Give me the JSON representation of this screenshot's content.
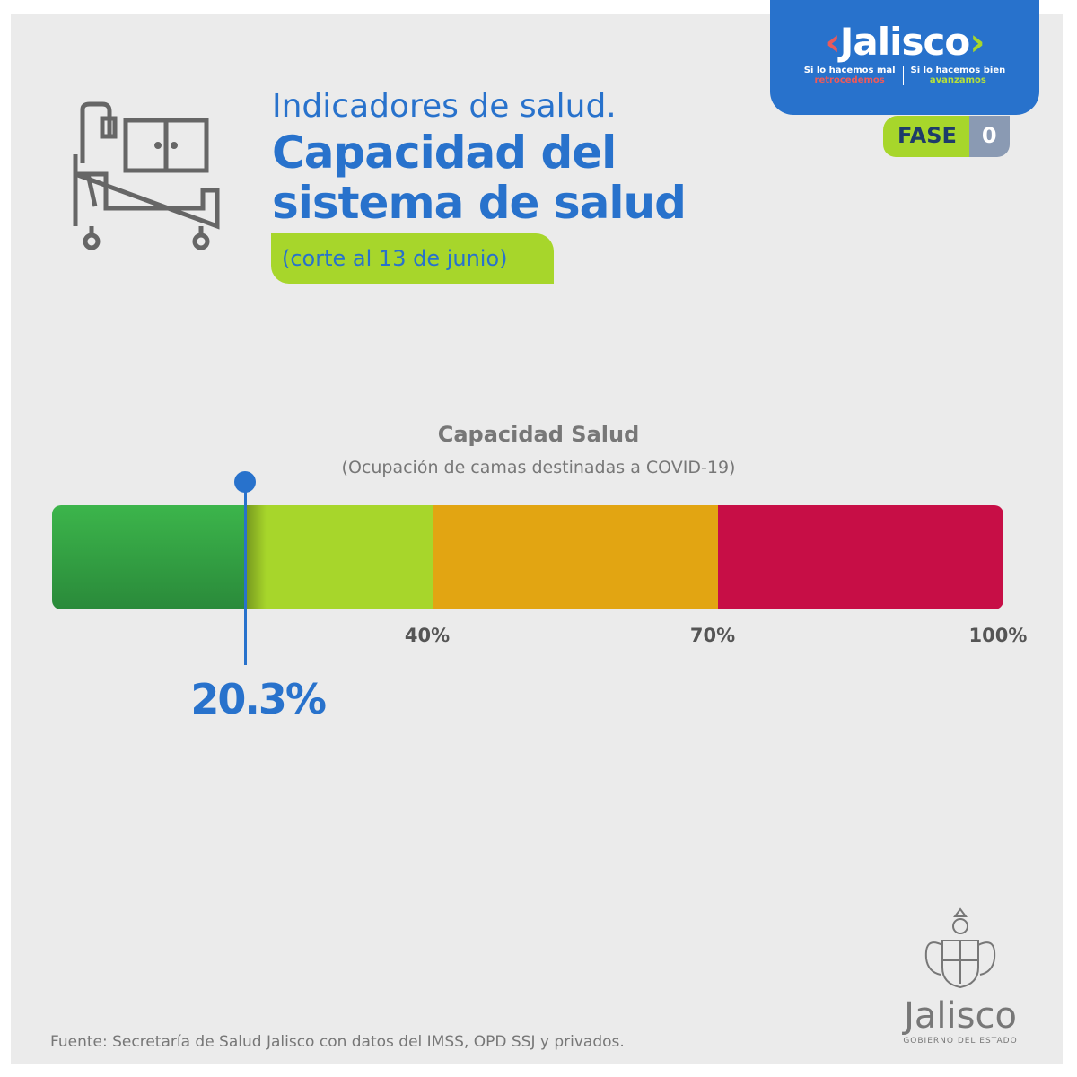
{
  "logo": {
    "name": "Jalisco",
    "tag_left_1": "Si lo hacemos mal",
    "tag_left_2": "retrocedemos",
    "tag_right_1": "Si lo hacemos bien",
    "tag_right_2": "avanzamos"
  },
  "fase": {
    "label": "FASE",
    "value": "0"
  },
  "header": {
    "subtitle": "Indicadores de salud.",
    "title_1": "Capacidad del",
    "title_2": "sistema de salud",
    "date": "(corte al 13 de junio)"
  },
  "chart_data": {
    "type": "bar",
    "title": "Capacidad Salud",
    "subtitle": "(Ocupación de camas destinadas a COVID-19)",
    "range": [
      0,
      100
    ],
    "segments": [
      {
        "from": 0,
        "to": 20.3,
        "color": "#38b04a"
      },
      {
        "from": 20.3,
        "to": 40,
        "color": "#a7d62b"
      },
      {
        "from": 40,
        "to": 70,
        "color": "#e2a512"
      },
      {
        "from": 70,
        "to": 100,
        "color": "#c70e46"
      }
    ],
    "ticks": [
      {
        "value": 40,
        "label": "40%"
      },
      {
        "value": 70,
        "label": "70%"
      },
      {
        "value": 100,
        "label": "100%"
      }
    ],
    "value": 20.3,
    "value_label": "20.3%"
  },
  "footer": {
    "source": "Fuente: Secretaría de Salud Jalisco con datos del IMSS, OPD SSJ y privados.",
    "seal_name": "Jalisco",
    "seal_sub": "GOBIERNO DEL ESTADO"
  }
}
